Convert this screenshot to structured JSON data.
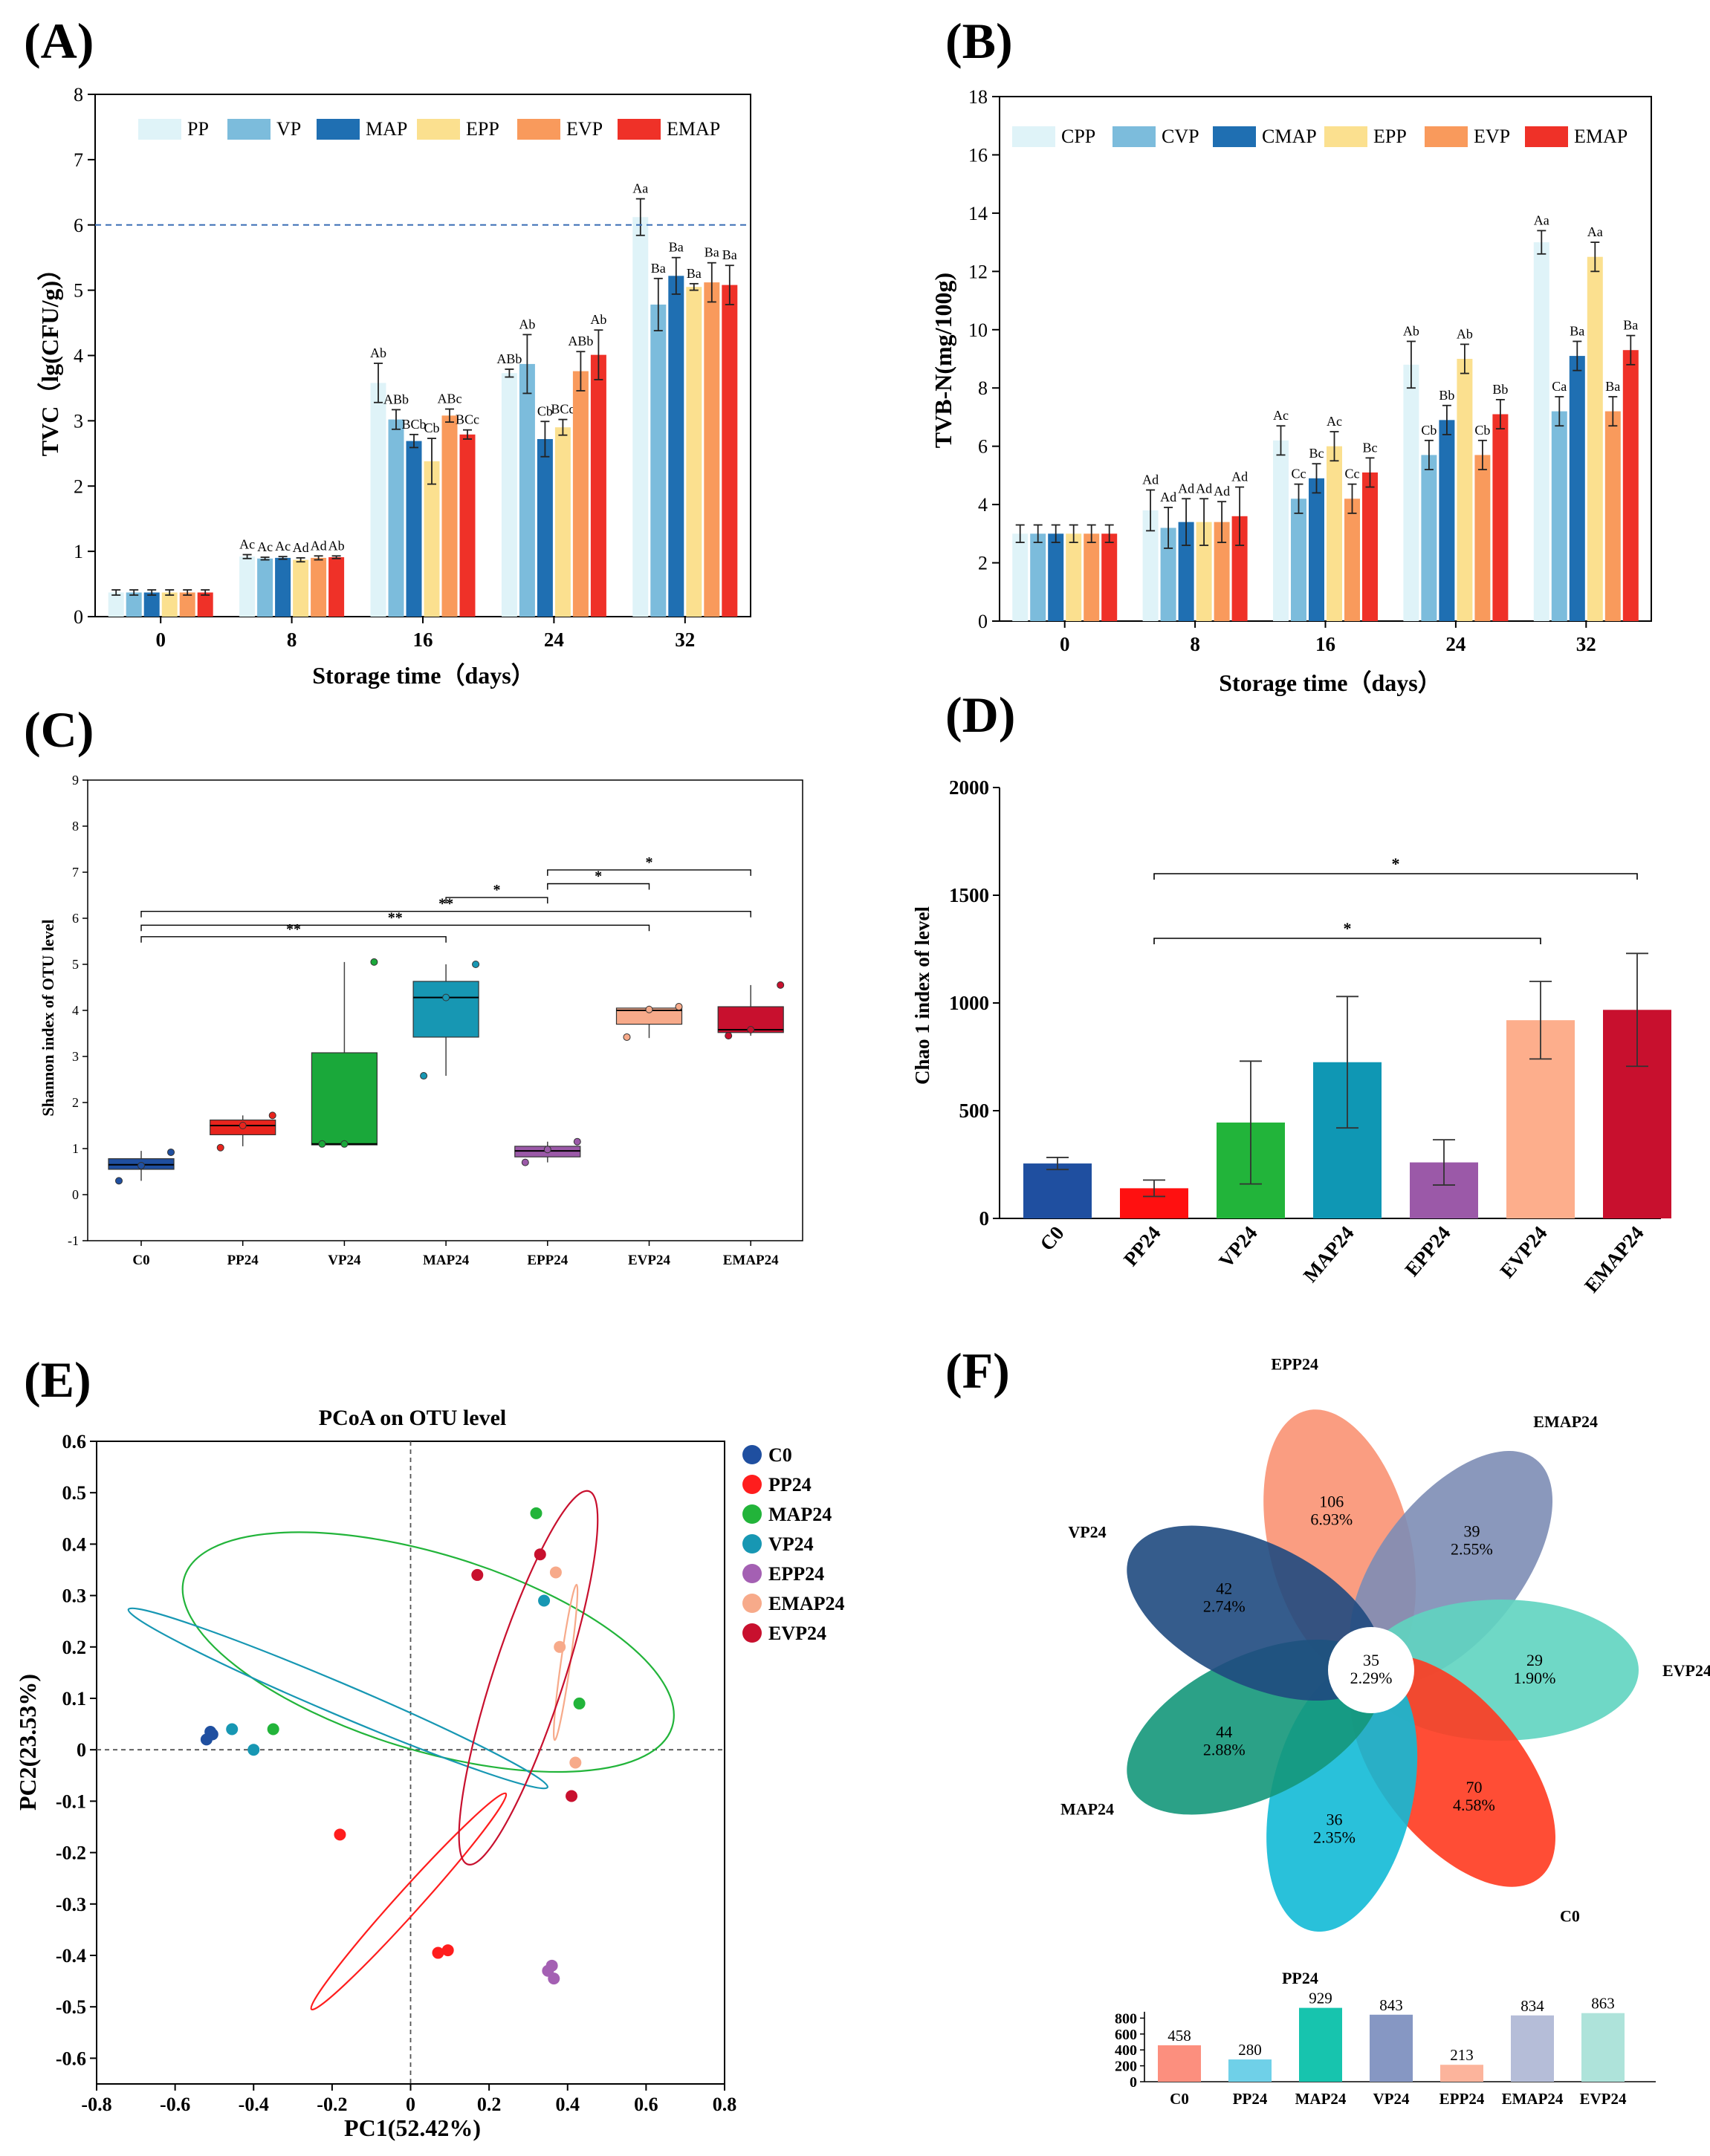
{
  "panels": [
    {
      "id": "A",
      "chart_data": {
        "type": "bar",
        "panel_label": "(A)",
        "title": "",
        "xlabel": "Storage time（days）",
        "ylabel": "TVC（lg(CFU/g)）",
        "ylim": [
          0,
          8
        ],
        "yticks": [
          0,
          1,
          2,
          3,
          4,
          5,
          6,
          7,
          8
        ],
        "categories": [
          "0",
          "8",
          "16",
          "24",
          "32"
        ],
        "legend_position": "top",
        "reference_line": {
          "y": 6,
          "style": "dashed",
          "color": "#3b6fb6"
        },
        "series": [
          {
            "name": "PP",
            "color": "#dff3f8",
            "values": [
              0.37,
              0.92,
              3.58,
              3.73,
              6.12
            ],
            "errors": [
              0.04,
              0.03,
              0.3,
              0.06,
              0.28
            ],
            "labels": [
              "",
              "Ac",
              "Ab",
              "ABb",
              "Aa"
            ]
          },
          {
            "name": "VP",
            "color": "#7cbcdc",
            "values": [
              0.37,
              0.89,
              3.02,
              3.87,
              4.78
            ],
            "errors": [
              0.04,
              0.02,
              0.15,
              0.45,
              0.4
            ],
            "labels": [
              "",
              "Ac",
              "ABb",
              "Ab",
              "Ba"
            ]
          },
          {
            "name": "MAP",
            "color": "#1f6fb2",
            "values": [
              0.37,
              0.9,
              2.69,
              2.72,
              5.22
            ],
            "errors": [
              0.04,
              0.02,
              0.1,
              0.27,
              0.28
            ],
            "labels": [
              "",
              "Ac",
              "BCb",
              "Cb",
              "Ba"
            ]
          },
          {
            "name": "EPP",
            "color": "#fbe08f",
            "values": [
              0.37,
              0.87,
              2.38,
              2.9,
              5.05
            ],
            "errors": [
              0.04,
              0.03,
              0.35,
              0.12,
              0.05
            ],
            "labels": [
              "",
              "Ad",
              "Cb",
              "BCc",
              "Ba"
            ]
          },
          {
            "name": "EVP",
            "color": "#f99a5c",
            "values": [
              0.37,
              0.9,
              3.08,
              3.76,
              5.12
            ],
            "errors": [
              0.04,
              0.03,
              0.1,
              0.3,
              0.3
            ],
            "labels": [
              "",
              "Ad",
              "ABc",
              "ABb",
              "Ba"
            ]
          },
          {
            "name": "EMAP",
            "color": "#ef3128",
            "values": [
              0.37,
              0.91,
              2.79,
              4.01,
              5.08
            ],
            "errors": [
              0.04,
              0.02,
              0.07,
              0.38,
              0.3
            ],
            "labels": [
              "",
              "Ab",
              "BCc",
              "Ab",
              "Ba"
            ]
          }
        ]
      }
    },
    {
      "id": "B",
      "chart_data": {
        "type": "bar",
        "panel_label": "(B)",
        "title": "",
        "xlabel": "Storage time（days）",
        "ylabel": "TVB-N(mg/100g)",
        "ylim": [
          0,
          18
        ],
        "yticks": [
          0,
          2,
          4,
          6,
          8,
          10,
          12,
          14,
          16,
          18
        ],
        "categories": [
          "0",
          "8",
          "16",
          "24",
          "32"
        ],
        "legend_position": "top",
        "series": [
          {
            "name": "CPP",
            "color": "#dff3f8",
            "values": [
              3.0,
              3.8,
              6.2,
              8.8,
              13.0
            ],
            "errors": [
              0.3,
              0.7,
              0.5,
              0.8,
              0.4
            ],
            "labels": [
              "",
              "Ad",
              "Ac",
              "Ab",
              "Aa"
            ]
          },
          {
            "name": "CVP",
            "color": "#7cbcdc",
            "values": [
              3.0,
              3.2,
              4.2,
              5.7,
              7.2
            ],
            "errors": [
              0.3,
              0.7,
              0.5,
              0.5,
              0.5
            ],
            "labels": [
              "",
              "Ad",
              "Cc",
              "Cb",
              "Ca"
            ]
          },
          {
            "name": "CMAP",
            "color": "#1f6fb2",
            "values": [
              3.0,
              3.4,
              4.9,
              6.9,
              9.1
            ],
            "errors": [
              0.3,
              0.8,
              0.5,
              0.5,
              0.5
            ],
            "labels": [
              "",
              "Ad",
              "Bc",
              "Bb",
              "Ba"
            ]
          },
          {
            "name": "EPP",
            "color": "#fbe08f",
            "values": [
              3.0,
              3.4,
              6.0,
              9.0,
              12.5
            ],
            "errors": [
              0.3,
              0.8,
              0.5,
              0.5,
              0.5
            ],
            "labels": [
              "",
              "Ad",
              "Ac",
              "Ab",
              "Aa"
            ]
          },
          {
            "name": "EVP",
            "color": "#f99a5c",
            "values": [
              3.0,
              3.4,
              4.2,
              5.7,
              7.2
            ],
            "errors": [
              0.3,
              0.7,
              0.5,
              0.5,
              0.5
            ],
            "labels": [
              "",
              "Ad",
              "Cc",
              "Cb",
              "Ba"
            ]
          },
          {
            "name": "EMAP",
            "color": "#ef3128",
            "values": [
              3.0,
              3.6,
              5.1,
              7.1,
              9.3
            ],
            "errors": [
              0.3,
              1.0,
              0.5,
              0.5,
              0.5
            ],
            "labels": [
              "",
              "Ad",
              "Bc",
              "Bb",
              "Ba"
            ]
          }
        ]
      }
    },
    {
      "id": "C",
      "chart_data": {
        "type": "box",
        "panel_label": "(C)",
        "title": "",
        "xlabel": "",
        "ylabel": "Shannon index of OTU level",
        "ylim": [
          -1,
          9
        ],
        "yticks": [
          -1,
          0,
          1,
          2,
          3,
          4,
          5,
          6,
          7,
          8,
          9
        ],
        "categories": [
          "C0",
          "PP24",
          "VP24",
          "MAP24",
          "EPP24",
          "EVP24",
          "EMAP24"
        ],
        "boxes": [
          {
            "name": "C0",
            "color": "#1f4fa0",
            "min": 0.3,
            "q1": 0.55,
            "median": 0.65,
            "q3": 0.78,
            "max": 0.95,
            "points": [
              0.3,
              0.63,
              0.92
            ]
          },
          {
            "name": "PP24",
            "color": "#e8241d",
            "min": 1.05,
            "q1": 1.3,
            "median": 1.5,
            "q3": 1.62,
            "max": 1.72,
            "points": [
              1.02,
              1.5,
              1.72
            ]
          },
          {
            "name": "VP24",
            "color": "#1aa83a",
            "min": 1.08,
            "q1": 1.08,
            "median": 1.1,
            "q3": 3.08,
            "max": 5.05,
            "points": [
              1.1,
              1.1,
              5.05
            ]
          },
          {
            "name": "MAP24",
            "color": "#1797b3",
            "min": 2.58,
            "q1": 3.42,
            "median": 4.28,
            "q3": 4.63,
            "max": 5.0,
            "points": [
              2.58,
              4.28,
              5.0
            ]
          },
          {
            "name": "EPP24",
            "color": "#9b59a8",
            "min": 0.7,
            "q1": 0.82,
            "median": 0.95,
            "q3": 1.05,
            "max": 1.15,
            "points": [
              0.7,
              0.98,
              1.15
            ]
          },
          {
            "name": "EVP24",
            "color": "#f7aa8a",
            "min": 3.4,
            "q1": 3.7,
            "median": 4.0,
            "q3": 4.05,
            "max": 4.1,
            "points": [
              3.42,
              4.02,
              4.08
            ]
          },
          {
            "name": "EMAP24",
            "color": "#c8102e",
            "min": 3.45,
            "q1": 3.52,
            "median": 3.58,
            "q3": 4.08,
            "max": 4.55,
            "points": [
              3.45,
              3.58,
              4.55
            ]
          }
        ],
        "significance": [
          {
            "from": "C0",
            "to": "MAP24",
            "y": 5.6,
            "label": "**"
          },
          {
            "from": "C0",
            "to": "EVP24",
            "y": 5.85,
            "label": "**"
          },
          {
            "from": "C0",
            "to": "EMAP24",
            "y": 6.15,
            "label": "**"
          },
          {
            "from": "MAP24",
            "to": "EPP24",
            "y": 6.45,
            "label": "*"
          },
          {
            "from": "EPP24",
            "to": "EVP24",
            "y": 6.75,
            "label": "*"
          },
          {
            "from": "EPP24",
            "to": "EMAP24",
            "y": 7.05,
            "label": "*"
          }
        ]
      }
    },
    {
      "id": "D",
      "chart_data": {
        "type": "bar",
        "panel_label": "(D)",
        "title": "",
        "xlabel": "",
        "ylabel": "Chao 1 index of level",
        "ylim": [
          0,
          2000
        ],
        "yticks": [
          0,
          500,
          1000,
          1500,
          2000
        ],
        "categories": [
          "C0",
          "PP24",
          "VP24",
          "MAP24",
          "EPP24",
          "EVP24",
          "EMAP24"
        ],
        "values": [
          255,
          140,
          445,
          725,
          260,
          920,
          968
        ],
        "errors": [
          28,
          38,
          285,
          305,
          105,
          180,
          262
        ],
        "colors": [
          "#1f4fa0",
          "#ff1010",
          "#22b43a",
          "#0f97b4",
          "#9b59a8",
          "#fdae8c",
          "#c8102e"
        ],
        "significance": [
          {
            "from": "PP24",
            "to": "EMAP24",
            "y": 1600,
            "label": "*"
          },
          {
            "from": "PP24",
            "to": "EVP24",
            "y": 1300,
            "label": "*"
          }
        ]
      }
    },
    {
      "id": "E",
      "chart_data": {
        "type": "scatter",
        "panel_label": "(E)",
        "title": "PCoA on OTU level",
        "xlabel": "PC1(52.42%)",
        "ylabel": "PC2(23.53%)",
        "xlim": [
          -0.8,
          0.8
        ],
        "ylim": [
          -0.65,
          0.6
        ],
        "xticks": [
          -0.8,
          -0.6,
          -0.4,
          -0.2,
          0,
          0.2,
          0.4,
          0.6,
          0.8
        ],
        "yticks": [
          -0.6,
          -0.5,
          -0.4,
          -0.3,
          -0.2,
          -0.1,
          0,
          0.1,
          0.2,
          0.3,
          0.4,
          0.5,
          0.6
        ],
        "legend_position": "right",
        "series": [
          {
            "name": "C0",
            "color": "#1f4fa0",
            "points": [
              [
                -0.51,
                0.035
              ],
              [
                -0.505,
                0.03
              ],
              [
                -0.52,
                0.02
              ]
            ],
            "ellipse": null
          },
          {
            "name": "PP24",
            "color": "#ff1d1d",
            "points": [
              [
                -0.18,
                -0.165
              ],
              [
                0.07,
                -0.395
              ],
              [
                0.095,
                -0.39
              ]
            ],
            "ellipse": {
              "cx": -0.005,
              "cy": -0.295,
              "rx": 0.37,
              "ry": 0.03,
              "angle": -48
            }
          },
          {
            "name": "MAP24",
            "color": "#22b43a",
            "points": [
              [
                0.32,
                0.46
              ],
              [
                0.43,
                0.09
              ],
              [
                -0.35,
                0.04
              ]
            ],
            "ellipse": {
              "cx": 0.045,
              "cy": 0.19,
              "rx": 0.65,
              "ry": 0.25,
              "angle": 17
            }
          },
          {
            "name": "VP24",
            "color": "#1797b3",
            "points": [
              [
                0.34,
                0.29
              ],
              [
                -0.455,
                0.04
              ],
              [
                -0.4,
                0.0
              ]
            ],
            "ellipse": {
              "cx": -0.185,
              "cy": 0.1,
              "rx": 0.58,
              "ry": 0.04,
              "angle": 23
            }
          },
          {
            "name": "EPP24",
            "color": "#a460b3",
            "points": [
              [
                0.35,
                -0.43
              ],
              [
                0.36,
                -0.42
              ],
              [
                0.365,
                -0.445
              ]
            ],
            "ellipse": null
          },
          {
            "name": "EMAP24",
            "color": "#f7aa8a",
            "points": [
              [
                0.37,
                0.345
              ],
              [
                0.38,
                0.2
              ],
              [
                0.42,
                -0.025
              ]
            ],
            "ellipse": {
              "cx": 0.395,
              "cy": 0.17,
              "rx": 0.2,
              "ry": 0.012,
              "angle": -82
            }
          },
          {
            "name": "EVP24",
            "color": "#c8102e",
            "points": [
              [
                0.17,
                0.34
              ],
              [
                0.33,
                0.38
              ],
              [
                0.41,
                -0.09
              ]
            ],
            "ellipse": {
              "cx": 0.3,
              "cy": 0.14,
              "rx": 0.5,
              "ry": 0.09,
              "angle": -72
            }
          }
        ]
      }
    },
    {
      "id": "F",
      "chart_data": {
        "type": "venn-flower",
        "panel_label": "(F)",
        "center": {
          "count": "35",
          "percent": "2.29%"
        },
        "petals": [
          {
            "name": "EPP24",
            "color": "#fa9273",
            "count": "106",
            "percent": "6.93%"
          },
          {
            "name": "EMAP24",
            "color": "#7d8db5",
            "count": "39",
            "percent": "2.55%"
          },
          {
            "name": "EVP24",
            "color": "#5fd4c0",
            "count": "29",
            "percent": "1.90%"
          },
          {
            "name": "C0",
            "color": "#ff3a1f",
            "count": "70",
            "percent": "4.58%"
          },
          {
            "name": "PP24",
            "color": "#12bad6",
            "count": "36",
            "percent": "2.35%"
          },
          {
            "name": "MAP24",
            "color": "#14977a",
            "count": "44",
            "percent": "2.88%"
          },
          {
            "name": "VP24",
            "color": "#1f4a80",
            "count": "42",
            "percent": "2.74%"
          }
        ],
        "totals": {
          "type": "bar",
          "ylim": [
            0,
            1000
          ],
          "yticks": [
            0,
            200,
            400,
            600,
            800
          ],
          "categories": [
            "C0",
            "PP24",
            "MAP24",
            "VP24",
            "EPP24",
            "EMAP24",
            "EVP24"
          ],
          "values": [
            458,
            280,
            929,
            843,
            213,
            834,
            863
          ],
          "labels": [
            "458",
            "280",
            "929",
            "843",
            "213",
            "834",
            "863"
          ],
          "colors": [
            "#fc8f7e",
            "#6fd0e8",
            "#17c4ae",
            "#8697c3",
            "#fcb49c",
            "#b5bdd8",
            "#aee3da"
          ]
        }
      }
    }
  ]
}
